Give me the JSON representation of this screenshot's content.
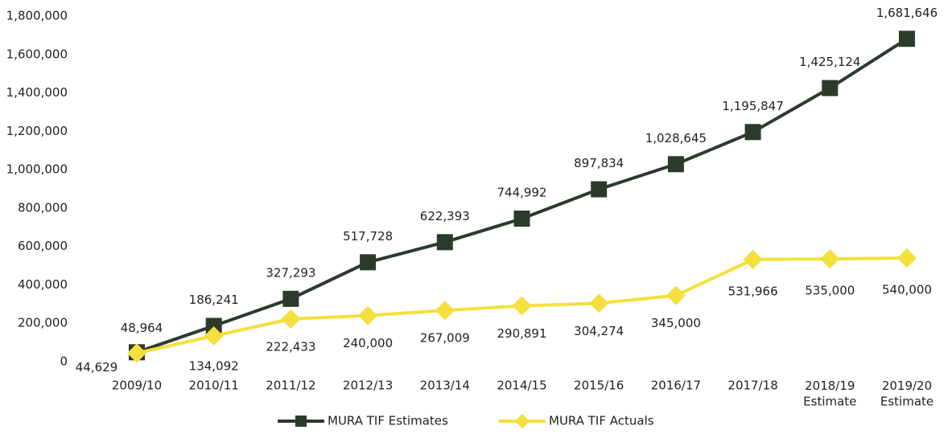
{
  "chart_data": {
    "type": "line",
    "categories": [
      "2009/10",
      "2010/11",
      "2011/12",
      "2012/13",
      "2013/14",
      "2014/15",
      "2015/16",
      "2016/17",
      "2017/18",
      "2018/19\nEstimate",
      "2019/20\nEstimate"
    ],
    "series": [
      {
        "name": "MURA TIF Estimates",
        "color": "#2b3b2b",
        "values": [
          48964,
          186241,
          327293,
          517728,
          622393,
          744992,
          897834,
          1028645,
          1195847,
          1425124,
          1681646
        ],
        "value_labels": [
          "48,964",
          "186,241",
          "327,293",
          "517,728",
          "622,393",
          "744,992",
          "897,834",
          "1,028,645",
          "1,195,847",
          "1,425,124",
          "1,681,646"
        ]
      },
      {
        "name": "MURA TIF Actuals",
        "color": "#f5df3c",
        "values": [
          44629,
          134092,
          222433,
          240000,
          267009,
          290891,
          304274,
          345000,
          531966,
          535000,
          540000
        ],
        "value_labels": [
          "44,629",
          "134,092",
          "222,433",
          "240,000",
          "267,009",
          "290,891",
          "304,274",
          "345,000",
          "531,966",
          "535,000",
          "540,000"
        ]
      }
    ],
    "ylim": [
      0,
      1800000
    ],
    "yticks": [
      0,
      {
        "value": 200000,
        "label": "200,000"
      },
      {
        "value": 400000,
        "label": "400,000"
      },
      {
        "value": 600000,
        "label": "600,000"
      },
      {
        "value": 800000,
        "label": "800,000"
      },
      {
        "value": 1000000,
        "label": "1,000,000"
      },
      {
        "value": 1200000,
        "label": "1,200,000"
      },
      {
        "value": 1400000,
        "label": "1,400,000"
      },
      {
        "value": 1600000,
        "label": "1,600,000"
      },
      {
        "value": 1800000,
        "label": "1,800,000"
      }
    ],
    "grid": false,
    "legend": "bottom"
  }
}
